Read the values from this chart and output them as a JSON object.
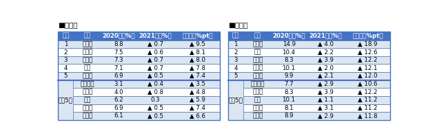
{
  "title_left": "■住宅地",
  "title_right": "■商業地",
  "header": [
    "順位",
    "区名",
    "2020年（%）",
    "2021年（%）",
    "変化幅（%pt）"
  ],
  "residential_top5": [
    [
      "1",
      "荒川区",
      "8.8",
      "▲ 0.7",
      "▲ 9.5"
    ],
    [
      "2",
      "豊島区",
      "7.5",
      "▲ 0.6",
      "▲ 8.1"
    ],
    [
      "3",
      "文京区",
      "7.3",
      "▲ 0.7",
      "▲ 8.0"
    ],
    [
      "4",
      "北区",
      "7.1",
      "▲ 0.7",
      "▲ 7.8"
    ],
    [
      "5",
      "新宿区",
      "6.9",
      "▲ 0.5",
      "▲ 7.4"
    ]
  ],
  "residential_toshhin": [
    [
      "千代田区",
      "3.1",
      "▲ 0.4",
      "▲ 3.5"
    ],
    [
      "中央区",
      "4.0",
      "▲ 0.8",
      "▲ 4.8"
    ],
    [
      "港区",
      "6.2",
      "0.3",
      "▲ 5.9"
    ],
    [
      "新宿区",
      "6.9",
      "▲ 0.5",
      "▲ 7.4"
    ],
    [
      "渋谷区",
      "6.1",
      "▲ 0.5",
      "▲ 6.6"
    ]
  ],
  "commercial_top5": [
    [
      "1",
      "台東区",
      "14.9",
      "▲ 4.0",
      "▲ 18.9"
    ],
    [
      "2",
      "北区",
      "10.4",
      "▲ 2.2",
      "▲ 12.6"
    ],
    [
      "3",
      "中央区",
      "8.3",
      "▲ 3.9",
      "▲ 12.2"
    ],
    [
      "4",
      "荒川区",
      "10.1",
      "▲ 2.0",
      "▲ 12.1"
    ],
    [
      "5",
      "豊島区",
      "9.9",
      "▲ 2.1",
      "▲ 12.0"
    ]
  ],
  "commercial_toshhin": [
    [
      "千代田区",
      "7.7",
      "▲ 2.9",
      "▲ 10.6"
    ],
    [
      "中央区",
      "8.3",
      "▲ 3.9",
      "▲ 12.2"
    ],
    [
      "港区",
      "10.1",
      "▲ 1.1",
      "▲ 11.2"
    ],
    [
      "新宿区",
      "8.1",
      "▲ 3.1",
      "▲ 11.2"
    ],
    [
      "渋谷区",
      "8.9",
      "▲ 2.9",
      "▲ 11.8"
    ]
  ],
  "header_bg": "#4472c4",
  "header_fg": "#ffffff",
  "row_bg_odd": "#dce6f1",
  "row_bg_even": "#ffffff",
  "border_color": "#4472c4",
  "font_size": 6.2,
  "header_font_size": 6.2
}
